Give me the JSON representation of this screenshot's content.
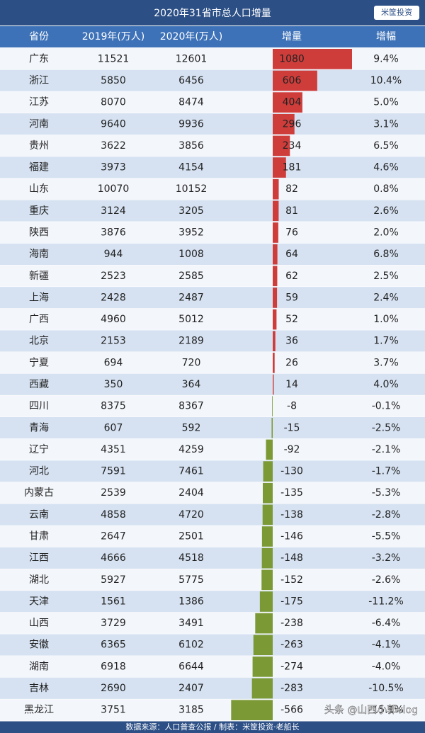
{
  "header": {
    "title": "2020年31省市总人口增量",
    "logo": "米筐投资"
  },
  "table": {
    "columns": [
      "省份",
      "2019年(万人)",
      "2020年(万人)",
      "增量",
      "增幅"
    ],
    "rows": [
      [
        "广东",
        11521,
        12601,
        1080,
        "9.4%"
      ],
      [
        "浙江",
        5850,
        6456,
        606,
        "10.4%"
      ],
      [
        "江苏",
        8070,
        8474,
        404,
        "5.0%"
      ],
      [
        "河南",
        9640,
        9936,
        296,
        "3.1%"
      ],
      [
        "贵州",
        3622,
        3856,
        234,
        "6.5%"
      ],
      [
        "福建",
        3973,
        4154,
        181,
        "4.6%"
      ],
      [
        "山东",
        10070,
        10152,
        82,
        "0.8%"
      ],
      [
        "重庆",
        3124,
        3205,
        81,
        "2.6%"
      ],
      [
        "陕西",
        3876,
        3952,
        76,
        "2.0%"
      ],
      [
        "海南",
        944,
        1008,
        64,
        "6.8%"
      ],
      [
        "新疆",
        2523,
        2585,
        62,
        "2.5%"
      ],
      [
        "上海",
        2428,
        2487,
        59,
        "2.4%"
      ],
      [
        "广西",
        4960,
        5012,
        52,
        "1.0%"
      ],
      [
        "北京",
        2153,
        2189,
        36,
        "1.7%"
      ],
      [
        "宁夏",
        694,
        720,
        26,
        "3.7%"
      ],
      [
        "西藏",
        350,
        364,
        14,
        "4.0%"
      ],
      [
        "四川",
        8375,
        8367,
        -8,
        "-0.1%"
      ],
      [
        "青海",
        607,
        592,
        -15,
        "-2.5%"
      ],
      [
        "辽宁",
        4351,
        4259,
        -92,
        "-2.1%"
      ],
      [
        "河北",
        7591,
        7461,
        -130,
        "-1.7%"
      ],
      [
        "内蒙古",
        2539,
        2404,
        -135,
        "-5.3%"
      ],
      [
        "云南",
        4858,
        4720,
        -138,
        "-2.8%"
      ],
      [
        "甘肃",
        2647,
        2501,
        -146,
        "-5.5%"
      ],
      [
        "江西",
        4666,
        4518,
        -148,
        "-3.2%"
      ],
      [
        "湖北",
        5927,
        5775,
        -152,
        "-2.6%"
      ],
      [
        "天津",
        1561,
        1386,
        -175,
        "-11.2%"
      ],
      [
        "山西",
        3729,
        3491,
        -238,
        "-6.4%"
      ],
      [
        "安徽",
        6365,
        6102,
        -263,
        "-4.1%"
      ],
      [
        "湖南",
        6918,
        6644,
        -274,
        "-4.0%"
      ],
      [
        "吉林",
        2690,
        2407,
        -283,
        "-10.5%"
      ],
      [
        "黑龙江",
        3751,
        3185,
        -566,
        "-15.1%"
      ]
    ]
  },
  "footer": {
    "source": "数据来源：人口普查公报 / 制表：米筐投资·老船长",
    "watermark": "头条 @山西小郭vlog"
  }
}
